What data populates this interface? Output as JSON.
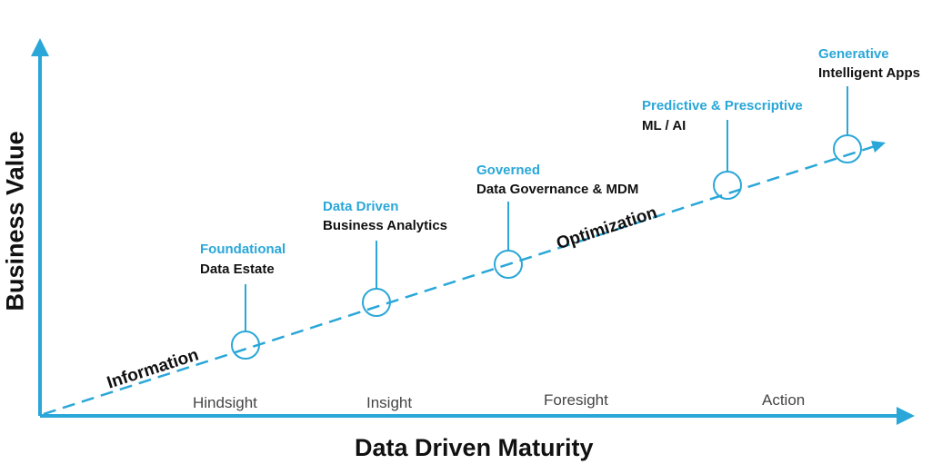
{
  "axes": {
    "y_label": "Business Value",
    "x_label": "Data Driven Maturity"
  },
  "trend_labels": [
    "Information",
    "Optimization"
  ],
  "phases": [
    "Hindsight",
    "Insight",
    "Foresight",
    "Action"
  ],
  "stages": [
    {
      "title": "Foundational",
      "subtitle": "Data Estate"
    },
    {
      "title": "Data Driven",
      "subtitle": "Business Analytics"
    },
    {
      "title": "Governed",
      "subtitle": "Data Governance & MDM"
    },
    {
      "title": "Predictive & Prescriptive",
      "subtitle": "ML / AI"
    },
    {
      "title": "Generative",
      "subtitle": "Intelligent Apps"
    }
  ],
  "colors": {
    "accent": "#2aa7d8",
    "text": "#111111",
    "phase_text": "#444444"
  }
}
